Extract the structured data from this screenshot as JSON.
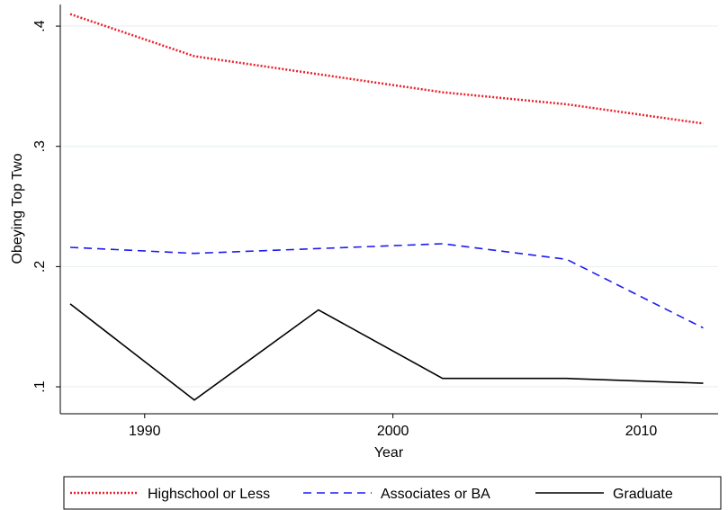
{
  "chart_data": {
    "type": "line",
    "x_label": "Year",
    "y_label": "Obeying Top Two",
    "x": [
      1987,
      1992,
      1997,
      2002,
      2007,
      2012.5
    ],
    "series": [
      {
        "name": "Highschool or Less",
        "color": "#e8202a",
        "dash": "2,2",
        "values": [
          0.41,
          0.375,
          0.36,
          0.345,
          0.335,
          0.319
        ]
      },
      {
        "name": "Associates or BA",
        "color": "#1c1cf0",
        "dash": "9,6",
        "values": [
          0.216,
          0.211,
          0.215,
          0.219,
          0.206,
          0.149
        ]
      },
      {
        "name": "Graduate",
        "color": "#000000",
        "dash": "none",
        "values": [
          0.169,
          0.089,
          0.164,
          0.107,
          0.107,
          0.103
        ]
      }
    ],
    "xlim": [
      1986.6,
      2013.1
    ],
    "xticks": [
      1990,
      2000,
      2010
    ],
    "ylim": [
      0.0776,
      0.418
    ],
    "yticks": [
      {
        "value": 0.1,
        "label": ".1"
      },
      {
        "value": 0.2,
        "label": ".2"
      },
      {
        "value": 0.3,
        "label": ".3"
      },
      {
        "value": 0.4,
        "label": ".4"
      }
    ],
    "grid": true
  }
}
